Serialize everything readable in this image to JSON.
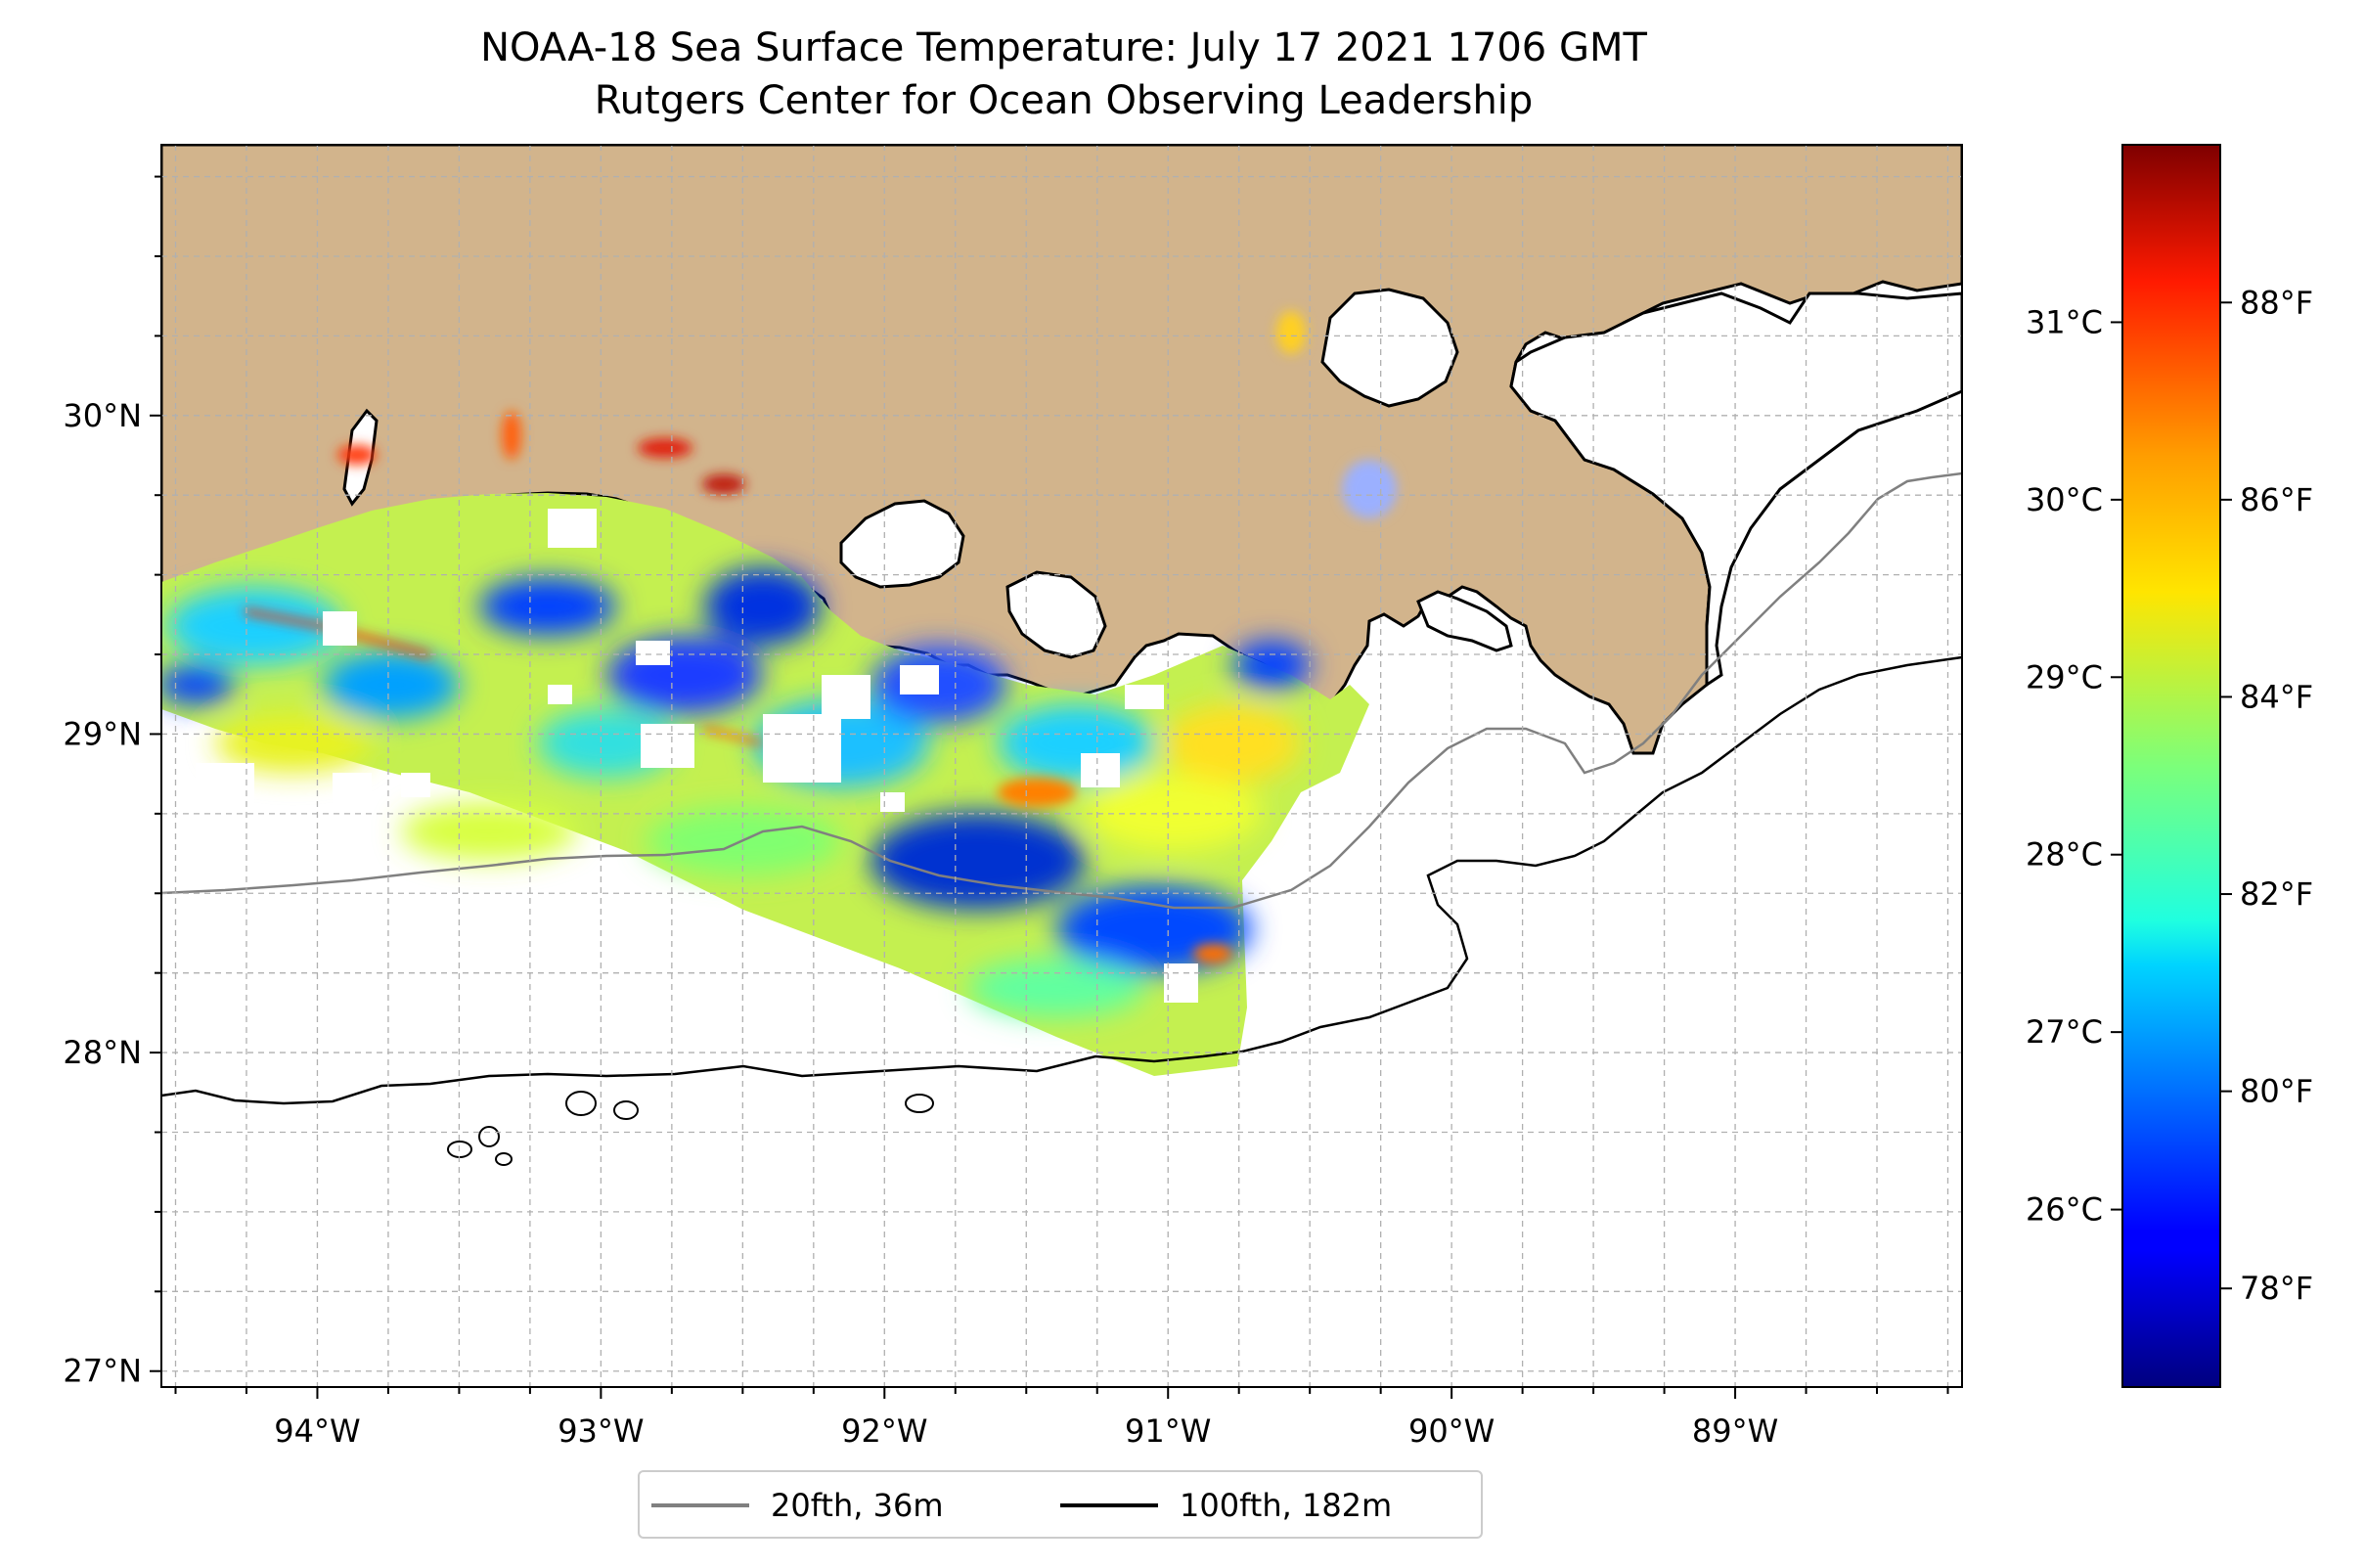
{
  "title": {
    "line1": "NOAA-18 Sea Surface Temperature: July 17 2021 1706 GMT",
    "line2": "Rutgers Center for Ocean Observing Leadership"
  },
  "map": {
    "lon_range": [
      -94.55,
      -88.2
    ],
    "lat_range": [
      26.95,
      30.85
    ],
    "lon_ticks": [
      {
        "value": -94,
        "label": "94°W"
      },
      {
        "value": -93,
        "label": "93°W"
      },
      {
        "value": -92,
        "label": "92°W"
      },
      {
        "value": -91,
        "label": "91°W"
      },
      {
        "value": -90,
        "label": "90°W"
      },
      {
        "value": -89,
        "label": "89°W"
      }
    ],
    "lat_ticks": [
      {
        "value": 27,
        "label": "27°N"
      },
      {
        "value": 28,
        "label": "28°N"
      },
      {
        "value": 29,
        "label": "29°N"
      },
      {
        "value": 30,
        "label": "30°N"
      }
    ],
    "gridlines": "dashed gray every 0.25°",
    "colors": {
      "land": "#d2b48c",
      "ocean": "#ffffff",
      "grid": "#b0b0b0",
      "coast": "#000000"
    }
  },
  "colorbar": {
    "colormap": "jet",
    "range_f": [
      77.0,
      89.6
    ],
    "celsius_ticks": [
      {
        "value": 26,
        "label": "26°C"
      },
      {
        "value": 27,
        "label": "27°C"
      },
      {
        "value": 28,
        "label": "28°C"
      },
      {
        "value": 29,
        "label": "29°C"
      },
      {
        "value": 30,
        "label": "30°C"
      },
      {
        "value": 31,
        "label": "31°C"
      }
    ],
    "fahrenheit_ticks": [
      {
        "value": 78,
        "label": "78°F"
      },
      {
        "value": 80,
        "label": "80°F"
      },
      {
        "value": 82,
        "label": "82°F"
      },
      {
        "value": 84,
        "label": "84°F"
      },
      {
        "value": 86,
        "label": "86°F"
      },
      {
        "value": 88,
        "label": "88°F"
      }
    ]
  },
  "legend": {
    "items": [
      {
        "label": "20fth, 36m",
        "color": "#808080"
      },
      {
        "label": "100fth, 182m",
        "color": "#000000"
      }
    ]
  }
}
